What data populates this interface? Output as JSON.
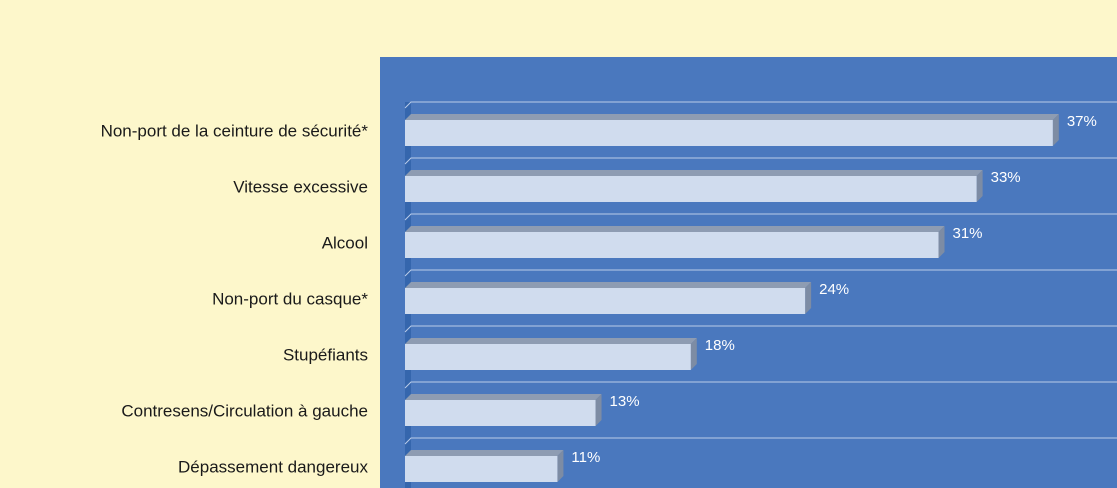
{
  "chart_data": {
    "type": "bar",
    "orientation": "horizontal",
    "categories": [
      "Non-port de la ceinture de sécurité*",
      "Vitesse excessive",
      "Alcool",
      "Non-port du casque*",
      "Stupéfiants",
      "Contresens/Circulation à gauche",
      "Dépassement dangereux"
    ],
    "values": [
      37,
      33,
      31,
      24,
      18,
      13,
      11
    ],
    "value_labels": [
      "37%",
      "33%",
      "31%",
      "24%",
      "18%",
      "13%",
      "11%"
    ],
    "xlim": [
      3,
      40
    ],
    "color": "#d0dcee",
    "background": "#4a78be"
  }
}
